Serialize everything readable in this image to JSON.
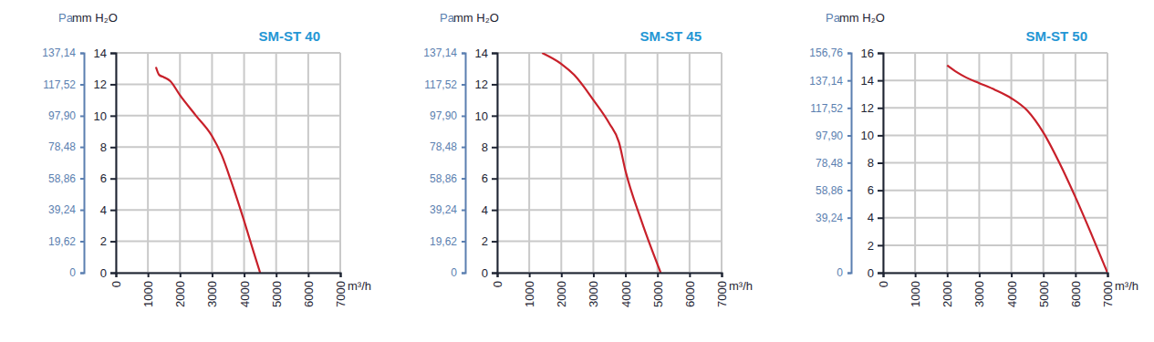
{
  "chart_data": [
    {
      "type": "line",
      "title": "SM-ST 40",
      "x_label": "m³/h",
      "y_label": "mm H₂O",
      "y2_label": "Pa",
      "x": [
        1250,
        1350,
        1500,
        1700,
        2000,
        2500,
        3000,
        3300,
        3600,
        4000,
        4300,
        4500
      ],
      "values": [
        13.1,
        12.6,
        12.45,
        12.2,
        11.3,
        10,
        8.7,
        7.5,
        5.8,
        3.3,
        1.3,
        0
      ],
      "color": "#c8202a",
      "grid": true,
      "xlim": [
        0,
        7000
      ],
      "xticks": [
        0,
        1000,
        2000,
        3000,
        4000,
        5000,
        6000,
        7000
      ],
      "ylim": [
        0,
        14
      ],
      "yticks": [
        0,
        2,
        4,
        6,
        8,
        10,
        12,
        14
      ],
      "y2lim": [
        0,
        137.14
      ],
      "y2ticks": [
        0,
        {
          "value": 19.62,
          "label": "19,62"
        },
        {
          "value": 39.24,
          "label": "39,24"
        },
        {
          "value": 58.86,
          "label": "58,86"
        },
        {
          "value": 78.48,
          "label": "78,48"
        },
        {
          "value": 97.9,
          "label": "97,90"
        },
        {
          "value": 117.52,
          "label": "117,52"
        },
        {
          "value": 137.14,
          "label": "137,14"
        }
      ]
    },
    {
      "type": "line",
      "title": "SM-ST 45",
      "x_label": "m³/h",
      "y_label": "mm H₂O",
      "y2_label": "Pa",
      "x": [
        1400,
        2000,
        2400,
        3000,
        3500,
        3800,
        4000,
        4500,
        5100
      ],
      "values": [
        14,
        13.3,
        12.6,
        11,
        9.5,
        8.3,
        6.5,
        3.3,
        0
      ],
      "color": "#c8202a",
      "grid": true,
      "xlim": [
        0,
        7000
      ],
      "xticks": [
        0,
        1000,
        2000,
        3000,
        4000,
        5000,
        6000,
        7000
      ],
      "ylim": [
        0,
        14
      ],
      "yticks": [
        0,
        2,
        4,
        6,
        8,
        10,
        12,
        14
      ],
      "y2lim": [
        0,
        137.14
      ],
      "y2ticks": [
        0,
        {
          "value": 19.62,
          "label": "19,62"
        },
        {
          "value": 39.24,
          "label": "39,24"
        },
        {
          "value": 58.86,
          "label": "58,86"
        },
        {
          "value": 78.48,
          "label": "78,48"
        },
        {
          "value": 97.9,
          "label": "97,90"
        },
        {
          "value": 117.52,
          "label": "117,52"
        },
        {
          "value": 137.14,
          "label": "137,14"
        }
      ]
    },
    {
      "type": "line",
      "title": "SM-ST 50",
      "x_label": "m³/h",
      "y_label": "mm H₂O",
      "y2_label": "Pa",
      "x": [
        2000,
        2300,
        2600,
        3000,
        3500,
        4000,
        4500,
        5000,
        5500,
        6000,
        6500,
        7000
      ],
      "values": [
        15.1,
        14.6,
        14.2,
        13.8,
        13.3,
        12.7,
        11.8,
        10.2,
        8,
        5.5,
        2.8,
        0
      ],
      "color": "#c8202a",
      "grid": true,
      "xlim": [
        0,
        7000
      ],
      "xticks": [
        0,
        1000,
        2000,
        3000,
        4000,
        5000,
        6000,
        7000
      ],
      "ylim": [
        0,
        16
      ],
      "yticks": [
        0,
        2,
        4,
        6,
        8,
        10,
        12,
        14,
        16
      ],
      "y2lim": [
        0,
        156.76
      ],
      "y2ticks": [
        0,
        {
          "value": 39.24,
          "label": "39,24"
        },
        {
          "value": 58.86,
          "label": "58,86"
        },
        {
          "value": 78.48,
          "label": "78,48"
        },
        {
          "value": 97.9,
          "label": "97,90"
        },
        {
          "value": 117.52,
          "label": "117,52"
        },
        {
          "value": 137.14,
          "label": "137,14"
        },
        {
          "value": 156.76,
          "label": "156,76"
        }
      ]
    }
  ]
}
